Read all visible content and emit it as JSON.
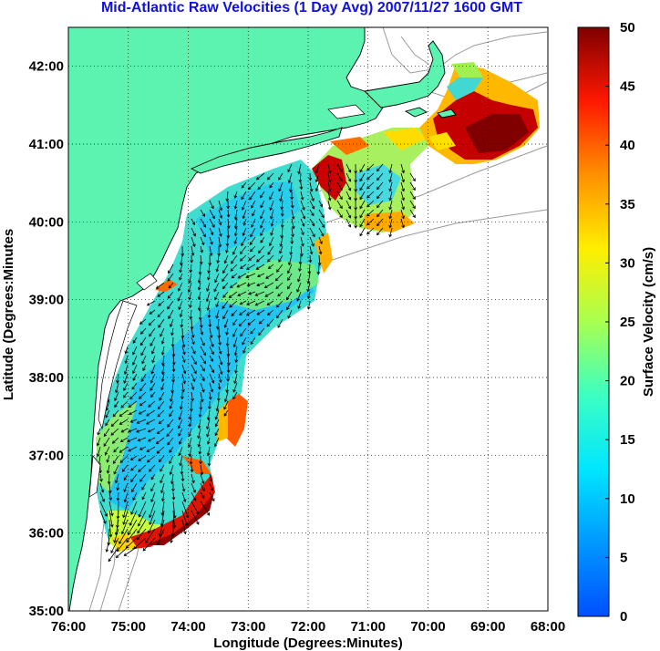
{
  "title": "Mid-Atlantic Raw Velocities (1 Day Avg) 2007/11/27 1600 GMT",
  "map": {
    "xlabel": "Longitude (Degrees:Minutes)",
    "ylabel": "Latitude (Degrees:Minutes",
    "x_ticks": [
      "76:00",
      "75:00",
      "74:00",
      "73:00",
      "72:00",
      "71:00",
      "70:00",
      "69:00",
      "68:00"
    ],
    "y_ticks": [
      "35:00",
      "36:00",
      "37:00",
      "38:00",
      "39:00",
      "40:00",
      "41:00",
      "42:00"
    ],
    "lon_range": [
      -76,
      -68
    ],
    "lat_range": [
      35,
      42.5
    ],
    "grid": true,
    "land_color": "#5cf2b0"
  },
  "colorbar": {
    "label": "Surface Velocity (cm/s)",
    "ticks": [
      "0",
      "5",
      "10",
      "15",
      "20",
      "25",
      "30",
      "35",
      "40",
      "45",
      "50"
    ],
    "range": [
      0,
      50
    ],
    "colormap": "jet"
  }
}
